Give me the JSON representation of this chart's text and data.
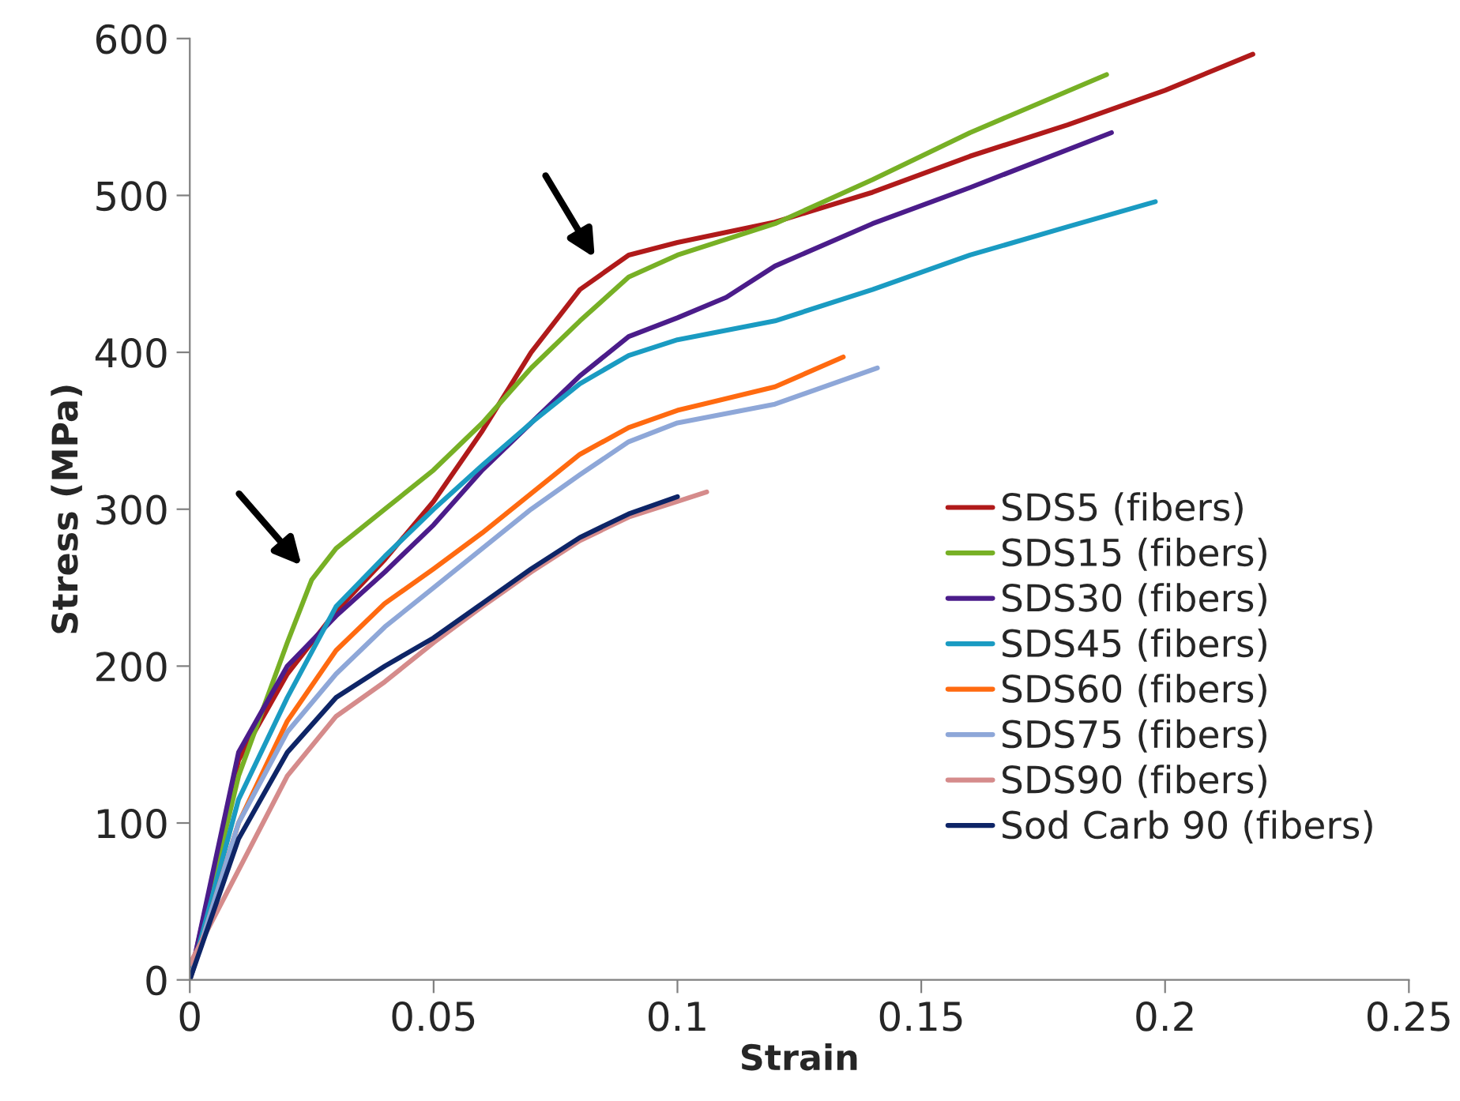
{
  "chart_data": {
    "type": "line",
    "xlabel": "Strain",
    "ylabel": "Stress (MPa)",
    "xlim": [
      0,
      0.25
    ],
    "xticks": [
      0,
      0.05,
      0.1,
      0.15,
      0.2,
      0.25
    ],
    "ylim": [
      0,
      600
    ],
    "yticks": [
      0,
      100,
      200,
      300,
      400,
      500,
      600
    ],
    "grid": false,
    "legend": "right",
    "line_style": "solid",
    "marker": "none",
    "series": [
      {
        "name": "SDS5 (fibers)",
        "color": "#b01a1a",
        "x": [
          0,
          0.01,
          0.02,
          0.03,
          0.04,
          0.05,
          0.06,
          0.07,
          0.08,
          0.09,
          0.1,
          0.12,
          0.14,
          0.16,
          0.18,
          0.2,
          0.218
        ],
        "values": [
          0,
          140,
          195,
          235,
          268,
          305,
          350,
          400,
          440,
          462,
          470,
          483,
          502,
          525,
          545,
          567,
          590
        ]
      },
      {
        "name": "SDS15 (fibers)",
        "color": "#77b025",
        "x": [
          0,
          0.01,
          0.02,
          0.025,
          0.03,
          0.04,
          0.05,
          0.06,
          0.07,
          0.08,
          0.09,
          0.1,
          0.12,
          0.14,
          0.16,
          0.188
        ],
        "values": [
          0,
          130,
          215,
          255,
          275,
          300,
          325,
          355,
          390,
          420,
          448,
          462,
          482,
          510,
          540,
          577
        ]
      },
      {
        "name": "SDS30 (fibers)",
        "color": "#4b1c8a",
        "x": [
          0,
          0.01,
          0.02,
          0.03,
          0.04,
          0.05,
          0.06,
          0.07,
          0.08,
          0.09,
          0.1,
          0.11,
          0.12,
          0.14,
          0.16,
          0.189
        ],
        "values": [
          0,
          145,
          200,
          232,
          260,
          290,
          325,
          355,
          385,
          410,
          422,
          435,
          455,
          482,
          505,
          540
        ]
      },
      {
        "name": "SDS45 (fibers)",
        "color": "#1a9bc2",
        "x": [
          0,
          0.01,
          0.02,
          0.03,
          0.04,
          0.05,
          0.06,
          0.07,
          0.08,
          0.09,
          0.1,
          0.12,
          0.14,
          0.16,
          0.18,
          0.198
        ],
        "values": [
          0,
          115,
          180,
          238,
          270,
          300,
          328,
          355,
          380,
          398,
          408,
          420,
          440,
          462,
          480,
          496
        ]
      },
      {
        "name": "SDS60 (fibers)",
        "color": "#ff6a10",
        "x": [
          0,
          0.01,
          0.02,
          0.03,
          0.04,
          0.05,
          0.06,
          0.07,
          0.08,
          0.09,
          0.1,
          0.12,
          0.134
        ],
        "values": [
          0,
          100,
          165,
          210,
          240,
          262,
          285,
          310,
          335,
          352,
          363,
          378,
          397
        ]
      },
      {
        "name": "SDS75 (fibers)",
        "color": "#8ea7d8",
        "x": [
          0,
          0.01,
          0.02,
          0.03,
          0.04,
          0.05,
          0.06,
          0.07,
          0.08,
          0.09,
          0.1,
          0.12,
          0.141
        ],
        "values": [
          0,
          100,
          158,
          195,
          225,
          250,
          275,
          300,
          322,
          343,
          355,
          367,
          390
        ]
      },
      {
        "name": "SDS90 (fibers)",
        "color": "#d58b8b",
        "x": [
          0,
          0.01,
          0.02,
          0.03,
          0.04,
          0.05,
          0.06,
          0.07,
          0.08,
          0.09,
          0.1,
          0.106
        ],
        "values": [
          10,
          70,
          130,
          168,
          190,
          215,
          238,
          260,
          280,
          295,
          305,
          311
        ]
      },
      {
        "name": "Sod Carb 90 (fibers)",
        "color": "#0e2567",
        "x": [
          0,
          0.01,
          0.02,
          0.03,
          0.04,
          0.05,
          0.06,
          0.07,
          0.08,
          0.09,
          0.1
        ],
        "values": [
          0,
          90,
          145,
          180,
          200,
          218,
          240,
          262,
          282,
          297,
          308
        ]
      }
    ]
  }
}
